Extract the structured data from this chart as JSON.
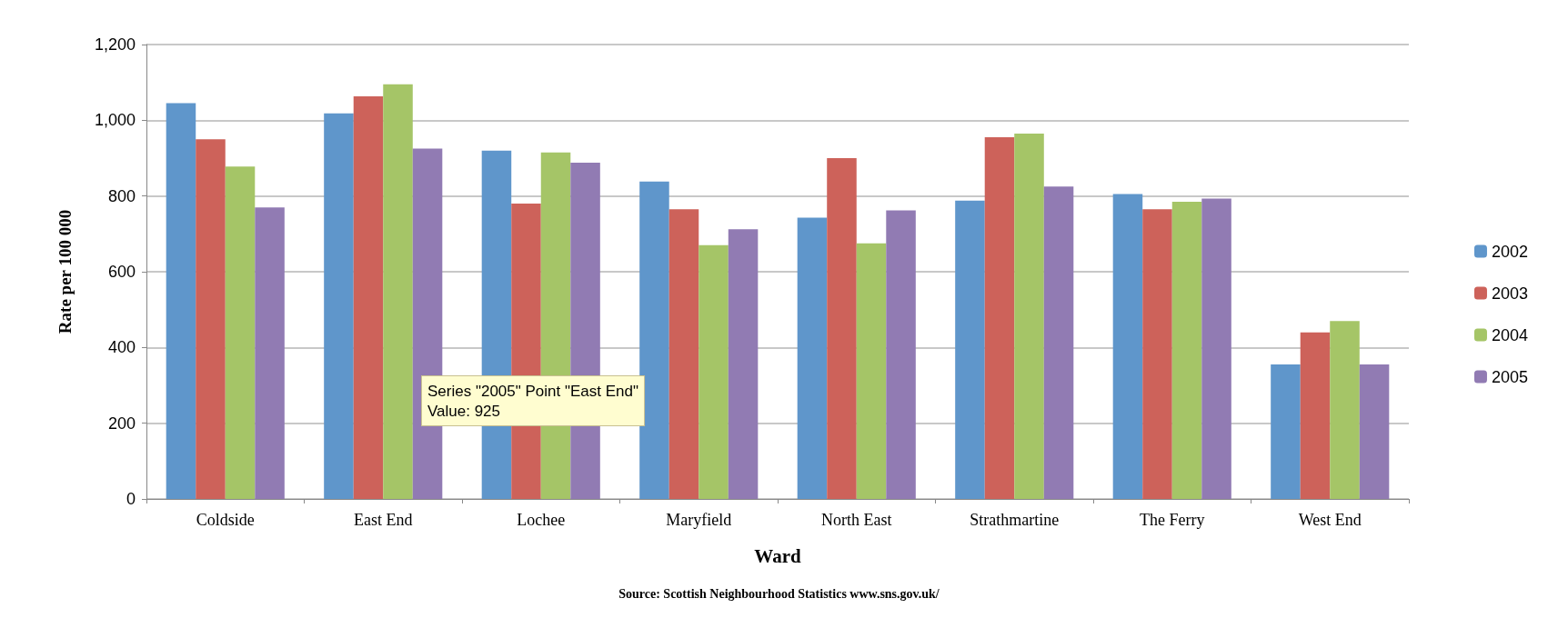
{
  "chart_data": {
    "type": "bar",
    "xlabel": "Ward",
    "ylabel": "Rate per 100 000",
    "categories": [
      "Coldside",
      "East End",
      "Lochee",
      "Maryfield",
      "North East",
      "Strathmartine",
      "The Ferry",
      "West End"
    ],
    "series": [
      {
        "name": "2002",
        "color": "#5f96cb",
        "values": [
          1045,
          1018,
          920,
          838,
          743,
          788,
          805,
          355
        ]
      },
      {
        "name": "2003",
        "color": "#cd625a",
        "values": [
          950,
          1063,
          780,
          765,
          900,
          955,
          765,
          440
        ]
      },
      {
        "name": "2004",
        "color": "#a5c567",
        "values": [
          878,
          1095,
          915,
          670,
          675,
          965,
          785,
          470
        ]
      },
      {
        "name": "2005",
        "color": "#917bb3",
        "values": [
          770,
          925,
          888,
          712,
          762,
          825,
          793,
          355
        ]
      }
    ],
    "ylim": [
      0,
      1200
    ],
    "yticks": [
      0,
      200,
      400,
      600,
      800,
      {
        "value": 1000,
        "label": "1,000"
      },
      {
        "value": 1200,
        "label": "1,200"
      }
    ],
    "grid": "y",
    "legend": "right",
    "annotations": [
      "Series \"2005\" Point \"East End\"\nValue: 925",
      "Source: Scottish Neighbourhood Statistics www.sns.gov.uk/"
    ]
  }
}
